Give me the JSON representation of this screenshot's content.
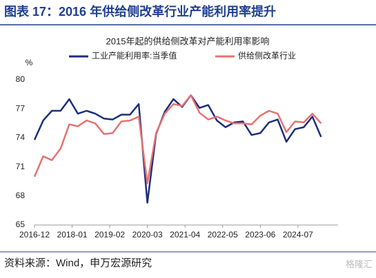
{
  "header": {
    "title": "图表 17：2016 年供给侧改革行业产能利用率提升"
  },
  "chart_data": {
    "type": "line",
    "title": "2015年起的供给侧改革对产能利用率影响",
    "y_unit": "%",
    "x": [
      "2016-12",
      "2017-03",
      "2017-06",
      "2017-09",
      "2017-12",
      "2018-03",
      "2018-06",
      "2018-09",
      "2018-12",
      "2019-03",
      "2019-06",
      "2019-09",
      "2019-12",
      "2020-03",
      "2020-06",
      "2020-09",
      "2020-12",
      "2021-03",
      "2021-06",
      "2021-09",
      "2021-12",
      "2022-03",
      "2022-06",
      "2022-09",
      "2022-12",
      "2023-03",
      "2023-06",
      "2023-09",
      "2023-12",
      "2024-03",
      "2024-06",
      "2024-09",
      "2024-12",
      "2025-03"
    ],
    "xlim": [
      "2016-12",
      "2025-06"
    ],
    "xticks": [
      "2016-12",
      "2018-01",
      "2019-02",
      "2020-03",
      "2021-04",
      "2022-05",
      "2023-06",
      "2024-07"
    ],
    "ylim": [
      65,
      80
    ],
    "yticks": [
      65,
      68,
      71,
      74,
      77,
      80
    ],
    "series": [
      {
        "name": "工业产能利用率:当季值",
        "color": "#1b2f7d",
        "values": [
          73.8,
          75.8,
          76.8,
          76.8,
          78.0,
          76.5,
          76.8,
          76.5,
          76.0,
          75.9,
          76.4,
          76.4,
          77.5,
          67.3,
          74.4,
          76.7,
          78.0,
          77.2,
          78.4,
          77.1,
          77.4,
          75.8,
          75.1,
          75.6,
          75.7,
          74.3,
          74.5,
          75.6,
          75.9,
          73.6,
          74.9,
          75.1,
          76.2,
          74.1
        ]
      },
      {
        "name": "供给侧改革行业",
        "color": "#e8716f",
        "values": [
          70.0,
          72.1,
          71.7,
          72.9,
          75.4,
          75.2,
          75.8,
          75.5,
          74.4,
          74.5,
          75.7,
          75.8,
          76.2,
          69.3,
          74.5,
          76.5,
          77.5,
          77.3,
          78.4,
          76.6,
          75.9,
          76.2,
          75.8,
          75.5,
          75.5,
          75.4,
          76.3,
          76.8,
          76.5,
          74.6,
          75.7,
          75.6,
          76.5,
          75.5
        ]
      }
    ]
  },
  "footer": {
    "source": "资料来源：Wind，申万宏源研究",
    "watermark": "格隆汇"
  }
}
